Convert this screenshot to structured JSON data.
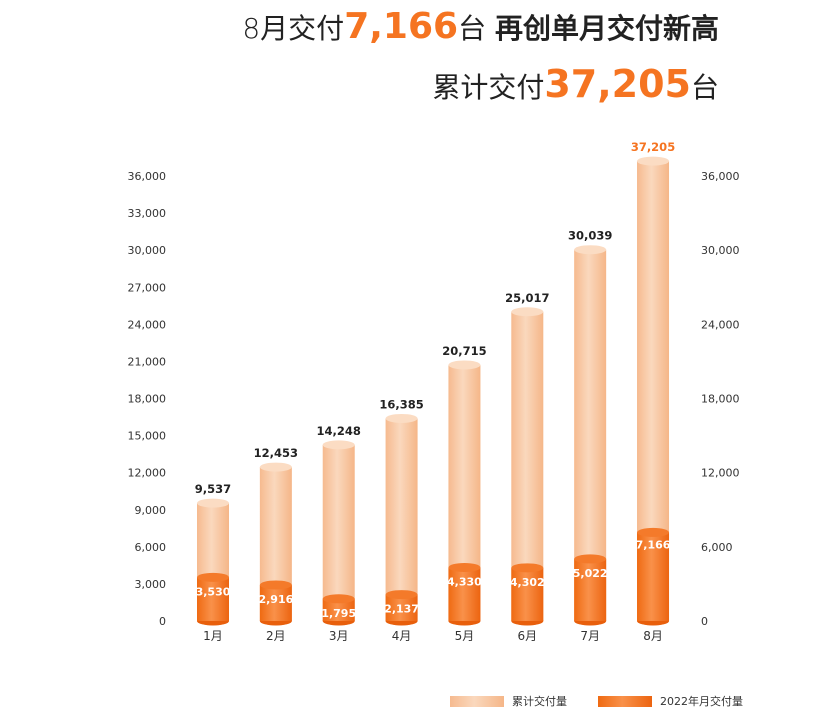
{
  "headline": {
    "line1_prefix": "8月交付",
    "line1_number": "7,166",
    "line1_unit": "台",
    "line1_tagline": "再创单月交付新高",
    "line2_prefix": "累计交付",
    "line2_number": "37,205",
    "line2_unit": "台"
  },
  "chart_data": {
    "type": "bar",
    "categories": [
      "1月",
      "2月",
      "3月",
      "4月",
      "5月",
      "6月",
      "7月",
      "8月"
    ],
    "series": [
      {
        "name": "累计交付量",
        "values": [
          9537,
          12453,
          14248,
          16385,
          20715,
          25017,
          30039,
          37205
        ],
        "labels": [
          "9,537",
          "12,453",
          "14,248",
          "16,385",
          "20,715",
          "25,017",
          "30,039",
          "37,205"
        ],
        "color": "#F7C39C"
      },
      {
        "name": "2022年月交付量",
        "values": [
          3530,
          2916,
          1795,
          2137,
          4330,
          4302,
          5022,
          7166
        ],
        "labels": [
          "3,530",
          "2,916",
          "1,795",
          "2,137",
          "4,330",
          "4,302",
          "5,022",
          "7,166"
        ],
        "color": "#F57421"
      }
    ],
    "left_axis": {
      "ylim": [
        0,
        36000
      ],
      "ticks": [
        0,
        3000,
        6000,
        9000,
        12000,
        15000,
        18000,
        21000,
        24000,
        27000,
        30000,
        33000,
        36000
      ],
      "tick_labels": [
        "0",
        "3,000",
        "6,000",
        "9,000",
        "12,000",
        "15,000",
        "18,000",
        "21,000",
        "24,000",
        "27,000",
        "30,000",
        "33,000",
        "36,000"
      ]
    },
    "right_axis": {
      "ylim": [
        0,
        36000
      ],
      "ticks": [
        0,
        6000,
        12000,
        18000,
        24000,
        30000,
        36000
      ],
      "tick_labels": [
        "0",
        "6,000",
        "12,000",
        "18,000",
        "24,000",
        "30,000",
        "36,000"
      ]
    },
    "highlight_color": "#F57421",
    "grid": false,
    "legend_position": "bottom-right"
  }
}
